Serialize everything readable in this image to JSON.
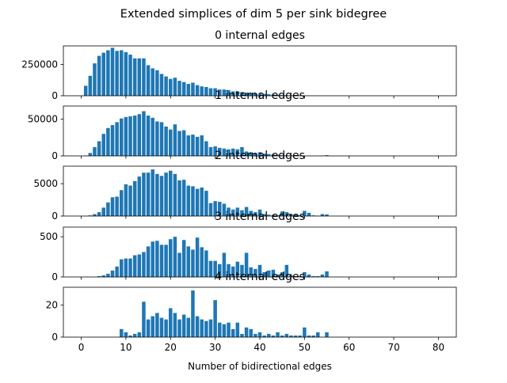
{
  "figure": {
    "suptitle": "Extended simplices of dim 5 per sink bidegree",
    "xlabel": "Number of bidirectional edges",
    "bar_color": "#1f77b4"
  },
  "chart_data": [
    {
      "type": "bar",
      "title": "0 internal edges",
      "xlim": [
        -4,
        84
      ],
      "ylim": [
        0,
        400000
      ],
      "yticks": [
        0,
        250000
      ],
      "show_xticklabels": false,
      "x": [
        1,
        2,
        3,
        4,
        5,
        6,
        7,
        8,
        9,
        10,
        11,
        12,
        13,
        14,
        15,
        16,
        17,
        18,
        19,
        20,
        21,
        22,
        23,
        24,
        25,
        26,
        27,
        28,
        29,
        30,
        31,
        32,
        33,
        34,
        35,
        36,
        37,
        38,
        39,
        40,
        41,
        42,
        43,
        44,
        45,
        46,
        47,
        48,
        49,
        50,
        51,
        52,
        53,
        54,
        55
      ],
      "values": [
        80000,
        160000,
        260000,
        320000,
        345000,
        365000,
        385000,
        360000,
        365000,
        350000,
        330000,
        300000,
        300000,
        300000,
        245000,
        220000,
        205000,
        175000,
        155000,
        135000,
        145000,
        120000,
        110000,
        95000,
        105000,
        85000,
        75000,
        70000,
        60000,
        60000,
        50000,
        50000,
        45000,
        35000,
        35000,
        30000,
        25000,
        22000,
        20000,
        18000,
        15000,
        12000,
        10000,
        8000,
        6000,
        5000,
        4000,
        3000,
        2500,
        2000,
        1500,
        1000,
        800,
        600,
        400
      ]
    },
    {
      "type": "bar",
      "title": "1 internal edges",
      "xlim": [
        -4,
        84
      ],
      "ylim": [
        0,
        68000
      ],
      "yticks": [
        0,
        50000
      ],
      "show_xticklabels": false,
      "x": [
        1,
        2,
        3,
        4,
        5,
        6,
        7,
        8,
        9,
        10,
        11,
        12,
        13,
        14,
        15,
        16,
        17,
        18,
        19,
        20,
        21,
        22,
        23,
        24,
        25,
        26,
        27,
        28,
        29,
        30,
        31,
        32,
        33,
        34,
        35,
        36,
        37,
        38,
        39,
        40,
        41,
        42,
        43,
        44,
        45,
        46,
        47,
        48,
        49,
        50,
        51,
        52,
        53,
        54,
        55
      ],
      "values": [
        500,
        4000,
        12000,
        20000,
        30000,
        38000,
        42000,
        46000,
        51000,
        53000,
        54000,
        55000,
        57000,
        61000,
        55000,
        52000,
        47000,
        46000,
        40000,
        36000,
        43000,
        34000,
        35000,
        28000,
        29000,
        26000,
        28000,
        20000,
        12000,
        13000,
        11000,
        10000,
        9000,
        10000,
        9000,
        12000,
        6000,
        5000,
        4000,
        5000,
        3000,
        2500,
        2000,
        1500,
        1000,
        800,
        600,
        500,
        300,
        200,
        150,
        100,
        80,
        500,
        1000
      ]
    },
    {
      "type": "bar",
      "title": "2 internal edges",
      "xlim": [
        -4,
        84
      ],
      "ylim": [
        0,
        7700
      ],
      "yticks": [
        0,
        5000
      ],
      "show_xticklabels": false,
      "x": [
        1,
        2,
        3,
        4,
        5,
        6,
        7,
        8,
        9,
        10,
        11,
        12,
        13,
        14,
        15,
        16,
        17,
        18,
        19,
        20,
        21,
        22,
        23,
        24,
        25,
        26,
        27,
        28,
        29,
        30,
        31,
        32,
        33,
        34,
        35,
        36,
        37,
        38,
        39,
        40,
        41,
        42,
        43,
        44,
        45,
        46,
        47,
        48,
        49,
        50,
        51,
        52,
        53,
        54,
        55
      ],
      "values": [
        20,
        100,
        300,
        600,
        1300,
        2100,
        2900,
        3000,
        4000,
        4900,
        4700,
        5400,
        6100,
        6700,
        6700,
        7200,
        6500,
        6200,
        6700,
        7000,
        6500,
        5500,
        5600,
        4700,
        4600,
        4200,
        4400,
        3900,
        2000,
        2300,
        2200,
        1900,
        1300,
        1000,
        1300,
        900,
        1400,
        800,
        600,
        1000,
        300,
        200,
        150,
        100,
        700,
        600,
        300,
        200,
        100,
        800,
        500,
        100,
        50,
        300,
        250
      ]
    },
    {
      "type": "bar",
      "title": "3 internal edges",
      "xlim": [
        -4,
        84
      ],
      "ylim": [
        0,
        620
      ],
      "yticks": [
        0,
        500
      ],
      "show_xticklabels": false,
      "x": [
        1,
        2,
        3,
        4,
        5,
        6,
        7,
        8,
        9,
        10,
        11,
        12,
        13,
        14,
        15,
        16,
        17,
        18,
        19,
        20,
        21,
        22,
        23,
        24,
        25,
        26,
        27,
        28,
        29,
        30,
        31,
        32,
        33,
        34,
        35,
        36,
        37,
        38,
        39,
        40,
        41,
        42,
        43,
        44,
        45,
        46,
        47,
        48,
        49,
        50,
        51,
        52,
        53,
        54,
        55
      ],
      "values": [
        0,
        0,
        0,
        10,
        20,
        40,
        80,
        130,
        220,
        230,
        230,
        270,
        280,
        310,
        380,
        440,
        450,
        400,
        400,
        470,
        500,
        300,
        460,
        380,
        340,
        490,
        370,
        330,
        200,
        200,
        160,
        300,
        160,
        130,
        190,
        150,
        300,
        120,
        100,
        150,
        60,
        80,
        90,
        30,
        60,
        150,
        20,
        10,
        10,
        60,
        30,
        10,
        10,
        30,
        70
      ]
    },
    {
      "type": "bar",
      "title": "4 internal edges",
      "xlim": [
        -4,
        84
      ],
      "ylim": [
        0,
        31
      ],
      "yticks": [
        0,
        20
      ],
      "show_xticklabels": true,
      "xticks": [
        0,
        10,
        20,
        30,
        40,
        50,
        60,
        70,
        80
      ],
      "x": [
        1,
        2,
        3,
        4,
        5,
        6,
        7,
        8,
        9,
        10,
        11,
        12,
        13,
        14,
        15,
        16,
        17,
        18,
        19,
        20,
        21,
        22,
        23,
        24,
        25,
        26,
        27,
        28,
        29,
        30,
        31,
        32,
        33,
        34,
        35,
        36,
        37,
        38,
        39,
        40,
        41,
        42,
        43,
        44,
        45,
        46,
        47,
        48,
        49,
        50,
        51,
        52,
        53,
        54,
        55
      ],
      "values": [
        0,
        0,
        0,
        0,
        0,
        0,
        0,
        0,
        5,
        3,
        1,
        2,
        3,
        22,
        11,
        13,
        15,
        12,
        11,
        18,
        15,
        11,
        14,
        12,
        29,
        13,
        11,
        10,
        11,
        23,
        9,
        8,
        9,
        5,
        9,
        2,
        6,
        5,
        2,
        3,
        1,
        2,
        1,
        3,
        1,
        2,
        1,
        1,
        1,
        6,
        1,
        1,
        3,
        0,
        3
      ]
    }
  ]
}
